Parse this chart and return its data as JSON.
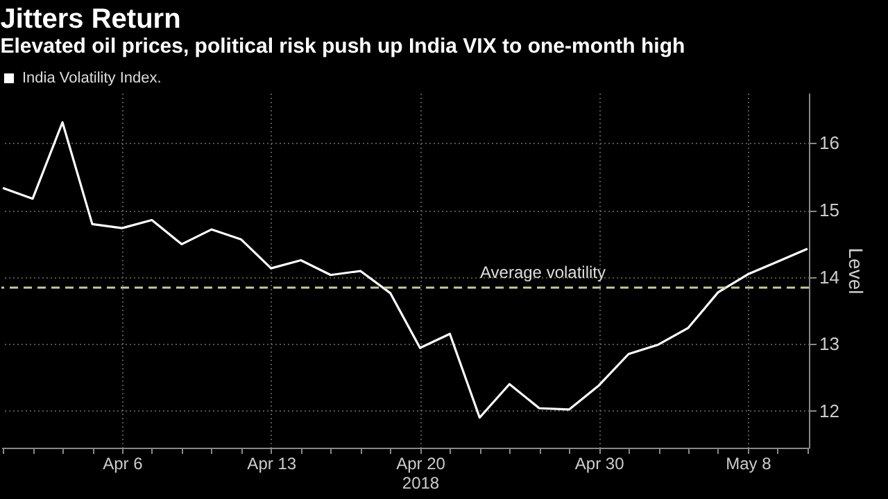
{
  "chart_data": {
    "type": "line",
    "title": "Jitters Return",
    "subtitle": "Elevated oil prices, political risk push up India VIX to one-month high",
    "ylabel": "Level",
    "categories": [
      null,
      null,
      null,
      null,
      "Apr 6",
      null,
      null,
      null,
      null,
      "Apr 13",
      null,
      null,
      null,
      null,
      "Apr 20\n2018",
      null,
      null,
      null,
      null,
      null,
      "Apr 30",
      null,
      null,
      null,
      null,
      "May 8",
      null,
      null
    ],
    "series": [
      {
        "name": "India Volatility Index.",
        "color": "#ffffff",
        "values": [
          15.33,
          15.17,
          16.31,
          14.79,
          14.73,
          14.85,
          14.49,
          14.71,
          14.56,
          14.13,
          14.25,
          14.03,
          14.09,
          13.76,
          12.94,
          13.15,
          11.9,
          12.4,
          12.04,
          12.02,
          12.38,
          12.85,
          12.99,
          13.24,
          13.77,
          14.04,
          14.23,
          14.42
        ]
      }
    ],
    "ylim": [
      11.45,
      16.75
    ],
    "yticks": [
      12,
      13,
      14,
      15,
      16
    ],
    "ref_lines": [
      {
        "axis": "y",
        "value": 13.84,
        "label": "Average volatility",
        "color": "#c8c89a",
        "line_style": "dashed"
      }
    ],
    "grid": true,
    "legend": "top left",
    "marker": "none",
    "line_style": "solid"
  }
}
